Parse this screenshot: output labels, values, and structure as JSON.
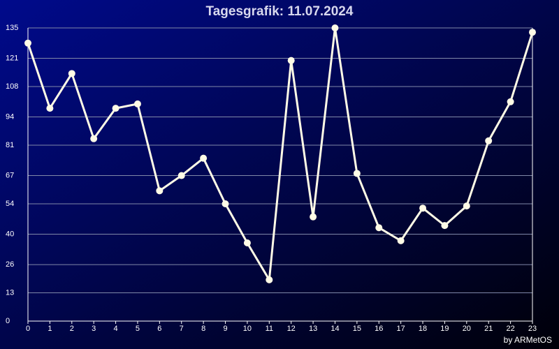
{
  "chart_data": {
    "type": "line",
    "title": "Tagesgrafik: 11.07.2024",
    "footer": "by ARMetOS",
    "x": [
      0,
      1,
      2,
      3,
      4,
      5,
      6,
      7,
      8,
      9,
      10,
      11,
      12,
      13,
      14,
      15,
      16,
      17,
      18,
      19,
      20,
      21,
      22,
      23
    ],
    "series": [
      {
        "color": "#fffbe6",
        "values": [
          128,
          98,
          114,
          84,
          98,
          100,
          60,
          67,
          75,
          54,
          36,
          19,
          120,
          48,
          135,
          68,
          43,
          37,
          52,
          44,
          53,
          83,
          101,
          133
        ]
      }
    ],
    "xlim": [
      0,
      23
    ],
    "xticks": [
      0,
      1,
      2,
      3,
      4,
      5,
      6,
      7,
      8,
      9,
      10,
      11,
      12,
      13,
      14,
      15,
      16,
      17,
      18,
      19,
      20,
      21,
      22,
      23
    ],
    "ylim": [
      0,
      135
    ],
    "yticks": [
      0,
      13,
      26,
      40,
      54,
      67,
      81,
      94,
      108,
      121,
      135
    ],
    "grid": true
  }
}
